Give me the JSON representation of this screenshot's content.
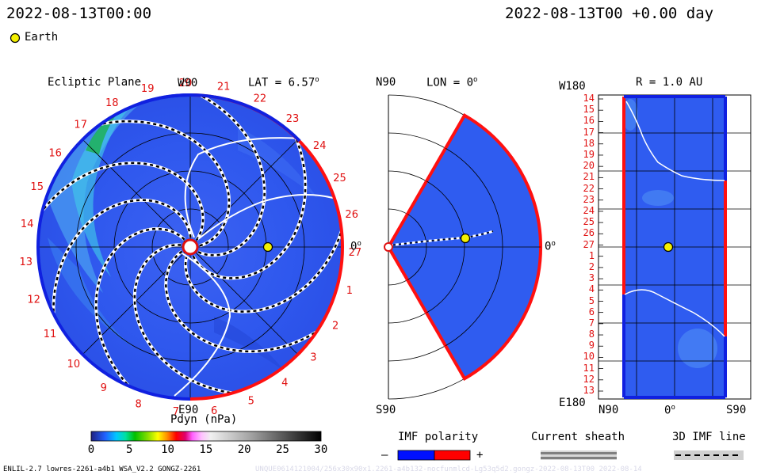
{
  "header": {
    "left_datetime": "2022-08-13T00:00",
    "right_datetime": "2022-08-13T00 +0.00 day"
  },
  "legend": {
    "earth_label": "Earth"
  },
  "ecliptic": {
    "title": "Ecliptic Plane",
    "w90": "W90",
    "e90": "E90",
    "lat_label": "LAT = 6.57",
    "lat_sup": "o",
    "zero_label": "0",
    "zero_sup": "o",
    "rim_numbers": [
      "19",
      "20",
      "21",
      "22",
      "23",
      "24",
      "25",
      "26",
      "27",
      "1",
      "2",
      "3",
      "4",
      "5",
      "6",
      "7",
      "8",
      "9",
      "10",
      "11",
      "12",
      "13",
      "14",
      "15",
      "16",
      "17",
      "18"
    ]
  },
  "meridional": {
    "n_label": "N90",
    "s_label": "S90",
    "lon_label": "LON = 0",
    "lon_sup": "o",
    "zero_label": "0",
    "zero_sup": "o"
  },
  "shell": {
    "w_label": "W180",
    "e_label": "E180",
    "r_label": "R = 1.0 AU",
    "n_label": "N90",
    "s_label": "S90",
    "zero_label": "0",
    "zero_sup": "o",
    "rows": [
      "14",
      "15",
      "16",
      "17",
      "18",
      "19",
      "20",
      "21",
      "22",
      "23",
      "24",
      "25",
      "26",
      "27",
      "1",
      "2",
      "3",
      "4",
      "5",
      "6",
      "7",
      "8",
      "9",
      "10",
      "11",
      "12",
      "13"
    ]
  },
  "colorbar": {
    "title": "Pdyn (nPa)",
    "ticks": [
      "0",
      "5",
      "10",
      "15",
      "20",
      "25",
      "30"
    ]
  },
  "imf": {
    "title": "IMF polarity",
    "minus": "–",
    "plus": "+"
  },
  "current_sheath": {
    "title": "Current sheath"
  },
  "imf_line": {
    "title": "3D IMF line"
  },
  "footer": {
    "model": "ENLIL-2.7 lowres-2261-a4b1 WSA_V2.2 GONGZ-2261",
    "run_id": "UNQUE0614121004/256x30x90x1.2261-a4b132-nocfunmlcd-Lg53q5d2.gongz-2022-08-13T00   2022-08-14"
  },
  "colors": {
    "bg_blue": "#2f5cf0",
    "outline_red": "#ff1010",
    "outline_blue": "#1020e0",
    "earth": "#f4f000"
  }
}
